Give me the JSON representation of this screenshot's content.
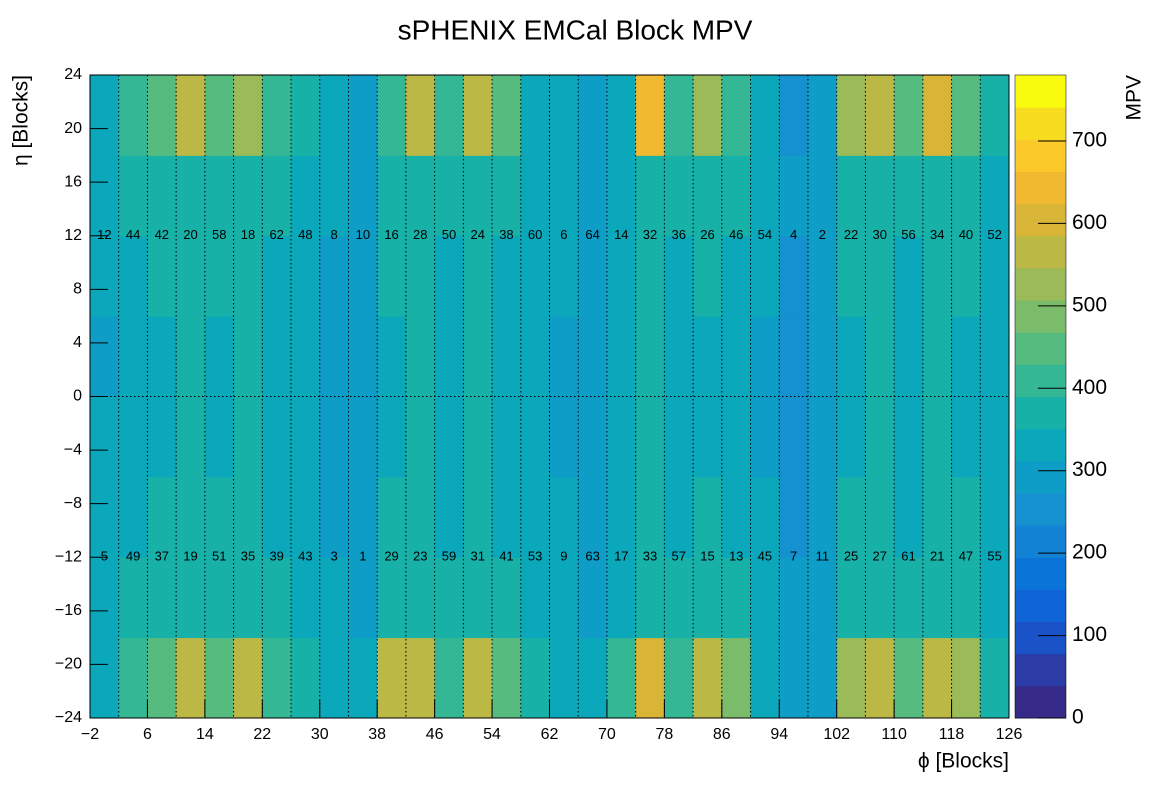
{
  "chart_data": {
    "type": "heatmap",
    "title": "sPHENIX EMCal Block MPV",
    "x_label": "ϕ [Blocks]",
    "y_label": "η [Blocks]",
    "z_label": "MPV",
    "xbins": [
      -2,
      2,
      6,
      10,
      14,
      18,
      22,
      26,
      30,
      34,
      38,
      42,
      46,
      50,
      54,
      58,
      62,
      66,
      70,
      74,
      78,
      82,
      86,
      90,
      94,
      98,
      102,
      106,
      110,
      114,
      118,
      122,
      126
    ],
    "ybins": [
      -24,
      -18,
      -12,
      -6,
      0,
      6,
      12,
      18,
      24
    ],
    "z": [
      [
        330,
        400,
        450,
        580,
        460,
        560,
        420,
        380,
        320,
        320,
        580,
        560,
        420,
        580,
        430,
        360,
        330,
        330,
        420,
        620,
        420,
        560,
        480,
        330,
        280,
        300,
        540,
        560,
        450,
        560,
        520,
        380
      ],
      [
        320,
        360,
        370,
        380,
        370,
        380,
        360,
        350,
        320,
        310,
        370,
        380,
        360,
        380,
        360,
        340,
        320,
        310,
        340,
        380,
        360,
        370,
        360,
        330,
        280,
        290,
        370,
        380,
        360,
        380,
        370,
        350
      ],
      [
        330,
        350,
        360,
        370,
        360,
        370,
        350,
        340,
        310,
        310,
        360,
        370,
        350,
        370,
        350,
        340,
        320,
        310,
        330,
        370,
        350,
        360,
        350,
        320,
        270,
        290,
        360,
        370,
        350,
        370,
        360,
        340
      ],
      [
        320,
        340,
        350,
        360,
        350,
        360,
        340,
        330,
        300,
        300,
        350,
        360,
        340,
        360,
        340,
        330,
        300,
        290,
        320,
        360,
        340,
        350,
        340,
        310,
        260,
        280,
        350,
        360,
        340,
        360,
        350,
        330
      ],
      [
        310,
        340,
        350,
        360,
        350,
        360,
        340,
        330,
        300,
        300,
        350,
        360,
        340,
        360,
        340,
        330,
        310,
        300,
        320,
        360,
        340,
        350,
        340,
        310,
        260,
        280,
        350,
        360,
        340,
        360,
        350,
        330
      ],
      [
        320,
        350,
        360,
        370,
        360,
        370,
        350,
        340,
        310,
        300,
        360,
        370,
        350,
        370,
        350,
        340,
        320,
        310,
        330,
        370,
        350,
        360,
        350,
        320,
        270,
        280,
        360,
        370,
        350,
        370,
        360,
        340
      ],
      [
        330,
        360,
        370,
        380,
        370,
        380,
        360,
        350,
        320,
        310,
        370,
        380,
        360,
        380,
        360,
        340,
        320,
        310,
        340,
        380,
        360,
        370,
        360,
        330,
        280,
        290,
        370,
        380,
        360,
        380,
        370,
        350
      ],
      [
        330,
        420,
        450,
        580,
        450,
        520,
        420,
        380,
        330,
        300,
        420,
        560,
        420,
        560,
        430,
        350,
        320,
        310,
        330,
        640,
        420,
        520,
        420,
        330,
        250,
        280,
        520,
        560,
        450,
        620,
        430,
        380
      ]
    ],
    "zlim": [
      0,
      780
    ],
    "xticks": [
      {
        "value": -2,
        "label": "−2"
      },
      6,
      14,
      22,
      30,
      38,
      46,
      54,
      62,
      70,
      78,
      86,
      94,
      102,
      110,
      118,
      126
    ],
    "yticks": [
      {
        "value": -24,
        "label": "−24"
      },
      {
        "value": -20,
        "label": "−20"
      },
      {
        "value": -16,
        "label": "−16"
      },
      {
        "value": -12,
        "label": "−12"
      },
      {
        "value": -8,
        "label": "−8"
      },
      {
        "value": -4,
        "label": "−4"
      },
      0,
      4,
      8,
      12,
      16,
      20,
      24
    ],
    "zticks": [
      0,
      100,
      200,
      300,
      400,
      500,
      600,
      700
    ],
    "palette": [
      "#352a87",
      "#2c3ca6",
      "#1a52c8",
      "#0f64d7",
      "#0a74d9",
      "#1283d4",
      "#1591cf",
      "#0e9dc7",
      "#0aa8ba",
      "#17b1a8",
      "#33b794",
      "#56bb7f",
      "#7bbc6b",
      "#9bbb58",
      "#bbb846",
      "#d8b537",
      "#f0b930",
      "#fbc92a",
      "#f8dc20",
      "#f9fb0e"
    ],
    "sector_labels_top": [
      "12",
      "44",
      "42",
      "20",
      "58",
      "18",
      "62",
      "48",
      "8",
      "10",
      "16",
      "28",
      "50",
      "24",
      "38",
      "60",
      "6",
      "64",
      "14",
      "32",
      "36",
      "26",
      "46",
      "54",
      "4",
      "2",
      "22",
      "30",
      "56",
      "34",
      "40",
      "52"
    ],
    "sector_labels_bottom": [
      "5",
      "49",
      "37",
      "19",
      "51",
      "35",
      "39",
      "43",
      "3",
      "1",
      "29",
      "23",
      "59",
      "31",
      "41",
      "53",
      "9",
      "63",
      "17",
      "33",
      "57",
      "15",
      "13",
      "45",
      "7",
      "11",
      "25",
      "27",
      "61",
      "21",
      "47",
      "55"
    ]
  }
}
